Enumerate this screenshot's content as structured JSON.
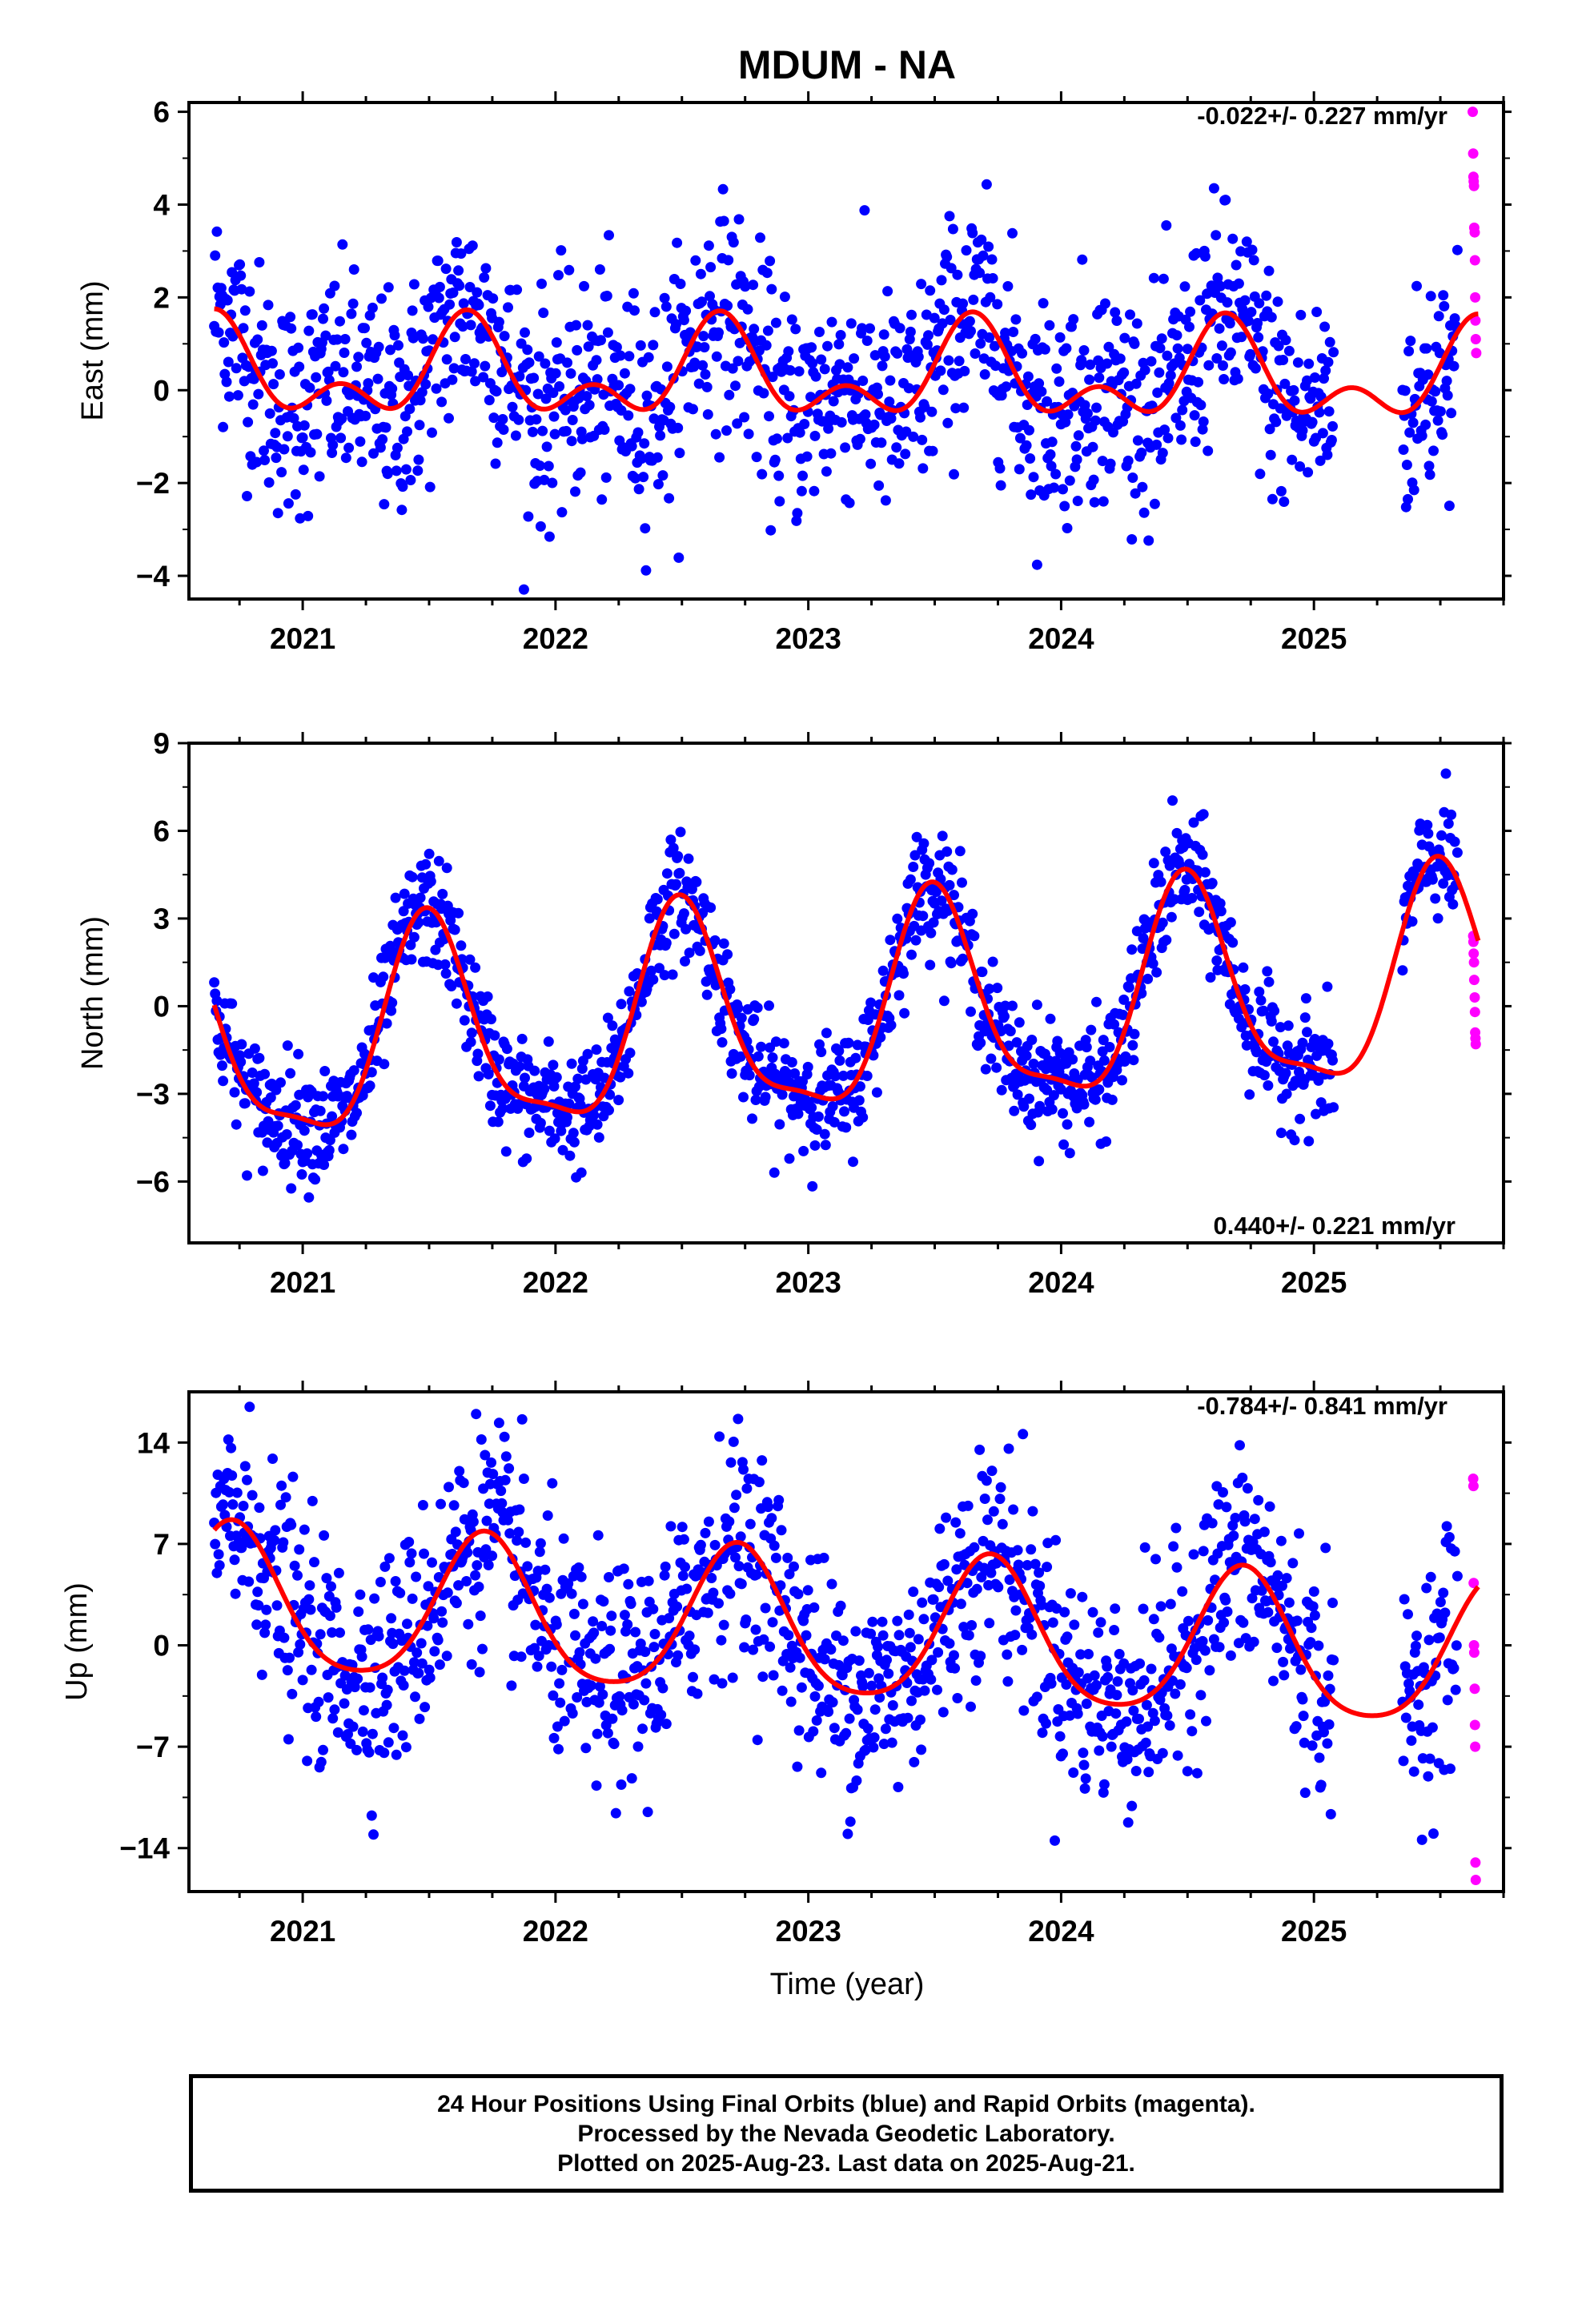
{
  "title": "MDUM - NA",
  "caption": {
    "line1": "24 Hour Positions Using Final Orbits (blue) and Rapid Orbits (magenta).",
    "line2": "Processed by the Nevada Geodetic Laboratory.",
    "line3": "Plotted on 2025-Aug-23. Last data on 2025-Aug-21."
  },
  "colors": {
    "final": "#0000ff",
    "rapid": "#ff00ff",
    "model": "#ff0000",
    "axis": "#000000"
  },
  "chart_data": [
    {
      "type": "scatter",
      "ylabel": "East (mm)",
      "xlabel": "",
      "xlim": [
        2020.55,
        2025.75
      ],
      "ylim": [
        -4.5,
        6.2
      ],
      "yticks": [
        -4,
        -2,
        0,
        2,
        4,
        6
      ],
      "xticks": [
        2021,
        2022,
        2023,
        2024,
        2025
      ],
      "rate_text": "-0.022+/- 0.227 mm/yr",
      "rate_position": "top-right",
      "data_start": 2020.65,
      "final_end": 2025.57,
      "seasonal": {
        "offset": 0.3,
        "annual_amp": 0.8,
        "annual_peak": 2020.65,
        "semi_amp": 0.6,
        "semi_peak": 2020.65,
        "trend": -0.022
      },
      "scatter_sd": 1.2,
      "rapid_points": [
        [
          2025.628,
          6.0
        ],
        [
          2025.63,
          5.1
        ],
        [
          2025.631,
          4.6
        ],
        [
          2025.632,
          4.5
        ],
        [
          2025.633,
          4.4
        ],
        [
          2025.634,
          3.5
        ],
        [
          2025.636,
          3.4
        ],
        [
          2025.637,
          2.8
        ],
        [
          2025.638,
          2.0
        ],
        [
          2025.639,
          1.5
        ],
        [
          2025.64,
          1.1
        ],
        [
          2025.642,
          0.8
        ]
      ]
    },
    {
      "type": "scatter",
      "ylabel": "North (mm)",
      "xlabel": "",
      "xlim": [
        2020.55,
        2025.75
      ],
      "ylim": [
        -8.1,
        9.0
      ],
      "yticks": [
        -6,
        -3,
        0,
        3,
        6,
        9
      ],
      "xticks": [
        2021,
        2022,
        2023,
        2024,
        2025
      ],
      "rate_text": "0.440+/- 0.221 mm/yr",
      "rate_position": "bottom-right",
      "data_start": 2020.65,
      "final_end": 2025.57,
      "seasonal": {
        "offset": -0.4,
        "annual_amp": 3.5,
        "annual_peak": 2020.5,
        "semi_amp": 1.0,
        "semi_peak": 2020.48,
        "trend": 0.44
      },
      "scatter_sd": 1.0,
      "rapid_points": [
        [
          2025.63,
          2.4
        ],
        [
          2025.631,
          2.2
        ],
        [
          2025.632,
          1.8
        ],
        [
          2025.633,
          1.5
        ],
        [
          2025.634,
          0.9
        ],
        [
          2025.636,
          0.3
        ],
        [
          2025.637,
          -0.2
        ],
        [
          2025.638,
          -0.9
        ],
        [
          2025.639,
          -1.1
        ],
        [
          2025.64,
          -1.3
        ]
      ]
    },
    {
      "type": "scatter",
      "ylabel": "Up (mm)",
      "xlabel": "Time (year)",
      "xlim": [
        2020.55,
        2025.75
      ],
      "ylim": [
        -17,
        17.5
      ],
      "yticks": [
        -14,
        -7,
        0,
        7,
        14
      ],
      "xticks": [
        2021,
        2022,
        2023,
        2024,
        2025
      ],
      "rate_text": "-0.784+/- 0.841 mm/yr",
      "rate_position": "top-right",
      "data_start": 2020.65,
      "final_end": 2025.57,
      "seasonal": {
        "offset": 1.0,
        "annual_amp": 5.0,
        "annual_peak": 2020.72,
        "semi_amp": 0.8,
        "semi_peak": 2020.72,
        "trend": -0.784
      },
      "scatter_sd": 3.8,
      "rapid_points": [
        [
          2025.63,
          11.5
        ],
        [
          2025.631,
          11.0
        ],
        [
          2025.632,
          4.3
        ],
        [
          2025.633,
          0.0
        ],
        [
          2025.634,
          -0.5
        ],
        [
          2025.636,
          -3.0
        ],
        [
          2025.637,
          -5.5
        ],
        [
          2025.638,
          -7.0
        ],
        [
          2025.639,
          -15.0
        ],
        [
          2025.64,
          -16.2
        ]
      ]
    }
  ]
}
